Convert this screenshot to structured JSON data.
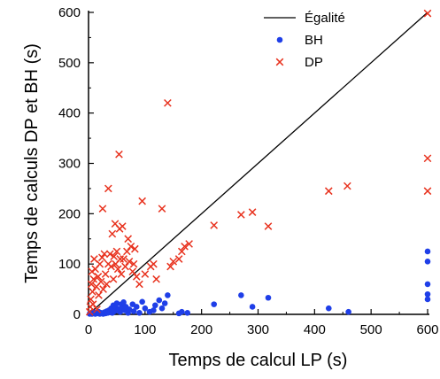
{
  "chart_data": {
    "type": "scatter",
    "title": "",
    "xlabel": "Temps de calcul LP (s)",
    "ylabel": "Temps de calculs DP et BH (s)",
    "xlim": [
      0,
      600
    ],
    "ylim": [
      0,
      600
    ],
    "xticks": [
      0,
      100,
      200,
      300,
      400,
      500,
      600
    ],
    "yticks": [
      0,
      100,
      200,
      300,
      400,
      500,
      600
    ],
    "legend_position": "top-right",
    "colors": {
      "equality": "#000000",
      "BH": "#1f3fe8",
      "DP": "#e8321e"
    },
    "series": [
      {
        "name": "Égalité",
        "kind": "line",
        "x": [
          0,
          600
        ],
        "y": [
          0,
          600
        ]
      },
      {
        "name": "BH",
        "kind": "dots",
        "points": [
          [
            2,
            1
          ],
          [
            3,
            2
          ],
          [
            5,
            3
          ],
          [
            6,
            1
          ],
          [
            8,
            2
          ],
          [
            10,
            4
          ],
          [
            12,
            1
          ],
          [
            14,
            3
          ],
          [
            16,
            2
          ],
          [
            18,
            5
          ],
          [
            20,
            1
          ],
          [
            22,
            3
          ],
          [
            24,
            2
          ],
          [
            26,
            1
          ],
          [
            28,
            4
          ],
          [
            30,
            2
          ],
          [
            32,
            6
          ],
          [
            34,
            3
          ],
          [
            36,
            8
          ],
          [
            38,
            4
          ],
          [
            40,
            12
          ],
          [
            42,
            3
          ],
          [
            44,
            18
          ],
          [
            46,
            6
          ],
          [
            48,
            15
          ],
          [
            50,
            22
          ],
          [
            52,
            8
          ],
          [
            54,
            10
          ],
          [
            56,
            5
          ],
          [
            58,
            20
          ],
          [
            60,
            12
          ],
          [
            62,
            24
          ],
          [
            64,
            8
          ],
          [
            66,
            15
          ],
          [
            70,
            3
          ],
          [
            72,
            10
          ],
          [
            78,
            20
          ],
          [
            80,
            6
          ],
          [
            85,
            15
          ],
          [
            90,
            3
          ],
          [
            95,
            25
          ],
          [
            100,
            12
          ],
          [
            108,
            5
          ],
          [
            115,
            8
          ],
          [
            118,
            18
          ],
          [
            125,
            28
          ],
          [
            130,
            12
          ],
          [
            135,
            22
          ],
          [
            140,
            38
          ],
          [
            160,
            2
          ],
          [
            165,
            5
          ],
          [
            175,
            3
          ],
          [
            222,
            20
          ],
          [
            270,
            38
          ],
          [
            290,
            15
          ],
          [
            318,
            33
          ],
          [
            425,
            12
          ],
          [
            460,
            5
          ],
          [
            600,
            125
          ],
          [
            600,
            105
          ],
          [
            600,
            60
          ],
          [
            600,
            40
          ],
          [
            600,
            30
          ]
        ]
      },
      {
        "name": "DP",
        "kind": "cross",
        "points": [
          [
            2,
            5
          ],
          [
            3,
            15
          ],
          [
            4,
            30
          ],
          [
            5,
            60
          ],
          [
            6,
            85
          ],
          [
            7,
            45
          ],
          [
            8,
            20
          ],
          [
            9,
            70
          ],
          [
            10,
            110
          ],
          [
            12,
            90
          ],
          [
            14,
            55
          ],
          [
            15,
            10
          ],
          [
            17,
            75
          ],
          [
            18,
            38
          ],
          [
            20,
            100
          ],
          [
            22,
            65
          ],
          [
            24,
            113
          ],
          [
            25,
            210
          ],
          [
            26,
            50
          ],
          [
            28,
            120
          ],
          [
            30,
            80
          ],
          [
            32,
            60
          ],
          [
            35,
            250
          ],
          [
            35,
            100
          ],
          [
            38,
            120
          ],
          [
            40,
            95
          ],
          [
            42,
            160
          ],
          [
            44,
            70
          ],
          [
            45,
            115
          ],
          [
            47,
            180
          ],
          [
            48,
            100
          ],
          [
            50,
            125
          ],
          [
            52,
            90
          ],
          [
            54,
            318
          ],
          [
            55,
            170
          ],
          [
            56,
            110
          ],
          [
            58,
            80
          ],
          [
            60,
            175
          ],
          [
            62,
            110
          ],
          [
            65,
            95
          ],
          [
            68,
            125
          ],
          [
            70,
            150
          ],
          [
            72,
            105
          ],
          [
            75,
            135
          ],
          [
            78,
            85
          ],
          [
            80,
            100
          ],
          [
            82,
            130
          ],
          [
            85,
            75
          ],
          [
            90,
            60
          ],
          [
            95,
            225
          ],
          [
            100,
            80
          ],
          [
            110,
            95
          ],
          [
            115,
            100
          ],
          [
            120,
            70
          ],
          [
            130,
            210
          ],
          [
            140,
            420
          ],
          [
            145,
            95
          ],
          [
            150,
            105
          ],
          [
            160,
            110
          ],
          [
            165,
            125
          ],
          [
            170,
            135
          ],
          [
            178,
            140
          ],
          [
            222,
            177
          ],
          [
            270,
            198
          ],
          [
            290,
            203
          ],
          [
            318,
            175
          ],
          [
            425,
            245
          ],
          [
            458,
            255
          ],
          [
            600,
            598
          ],
          [
            600,
            310
          ],
          [
            600,
            245
          ]
        ]
      }
    ]
  }
}
